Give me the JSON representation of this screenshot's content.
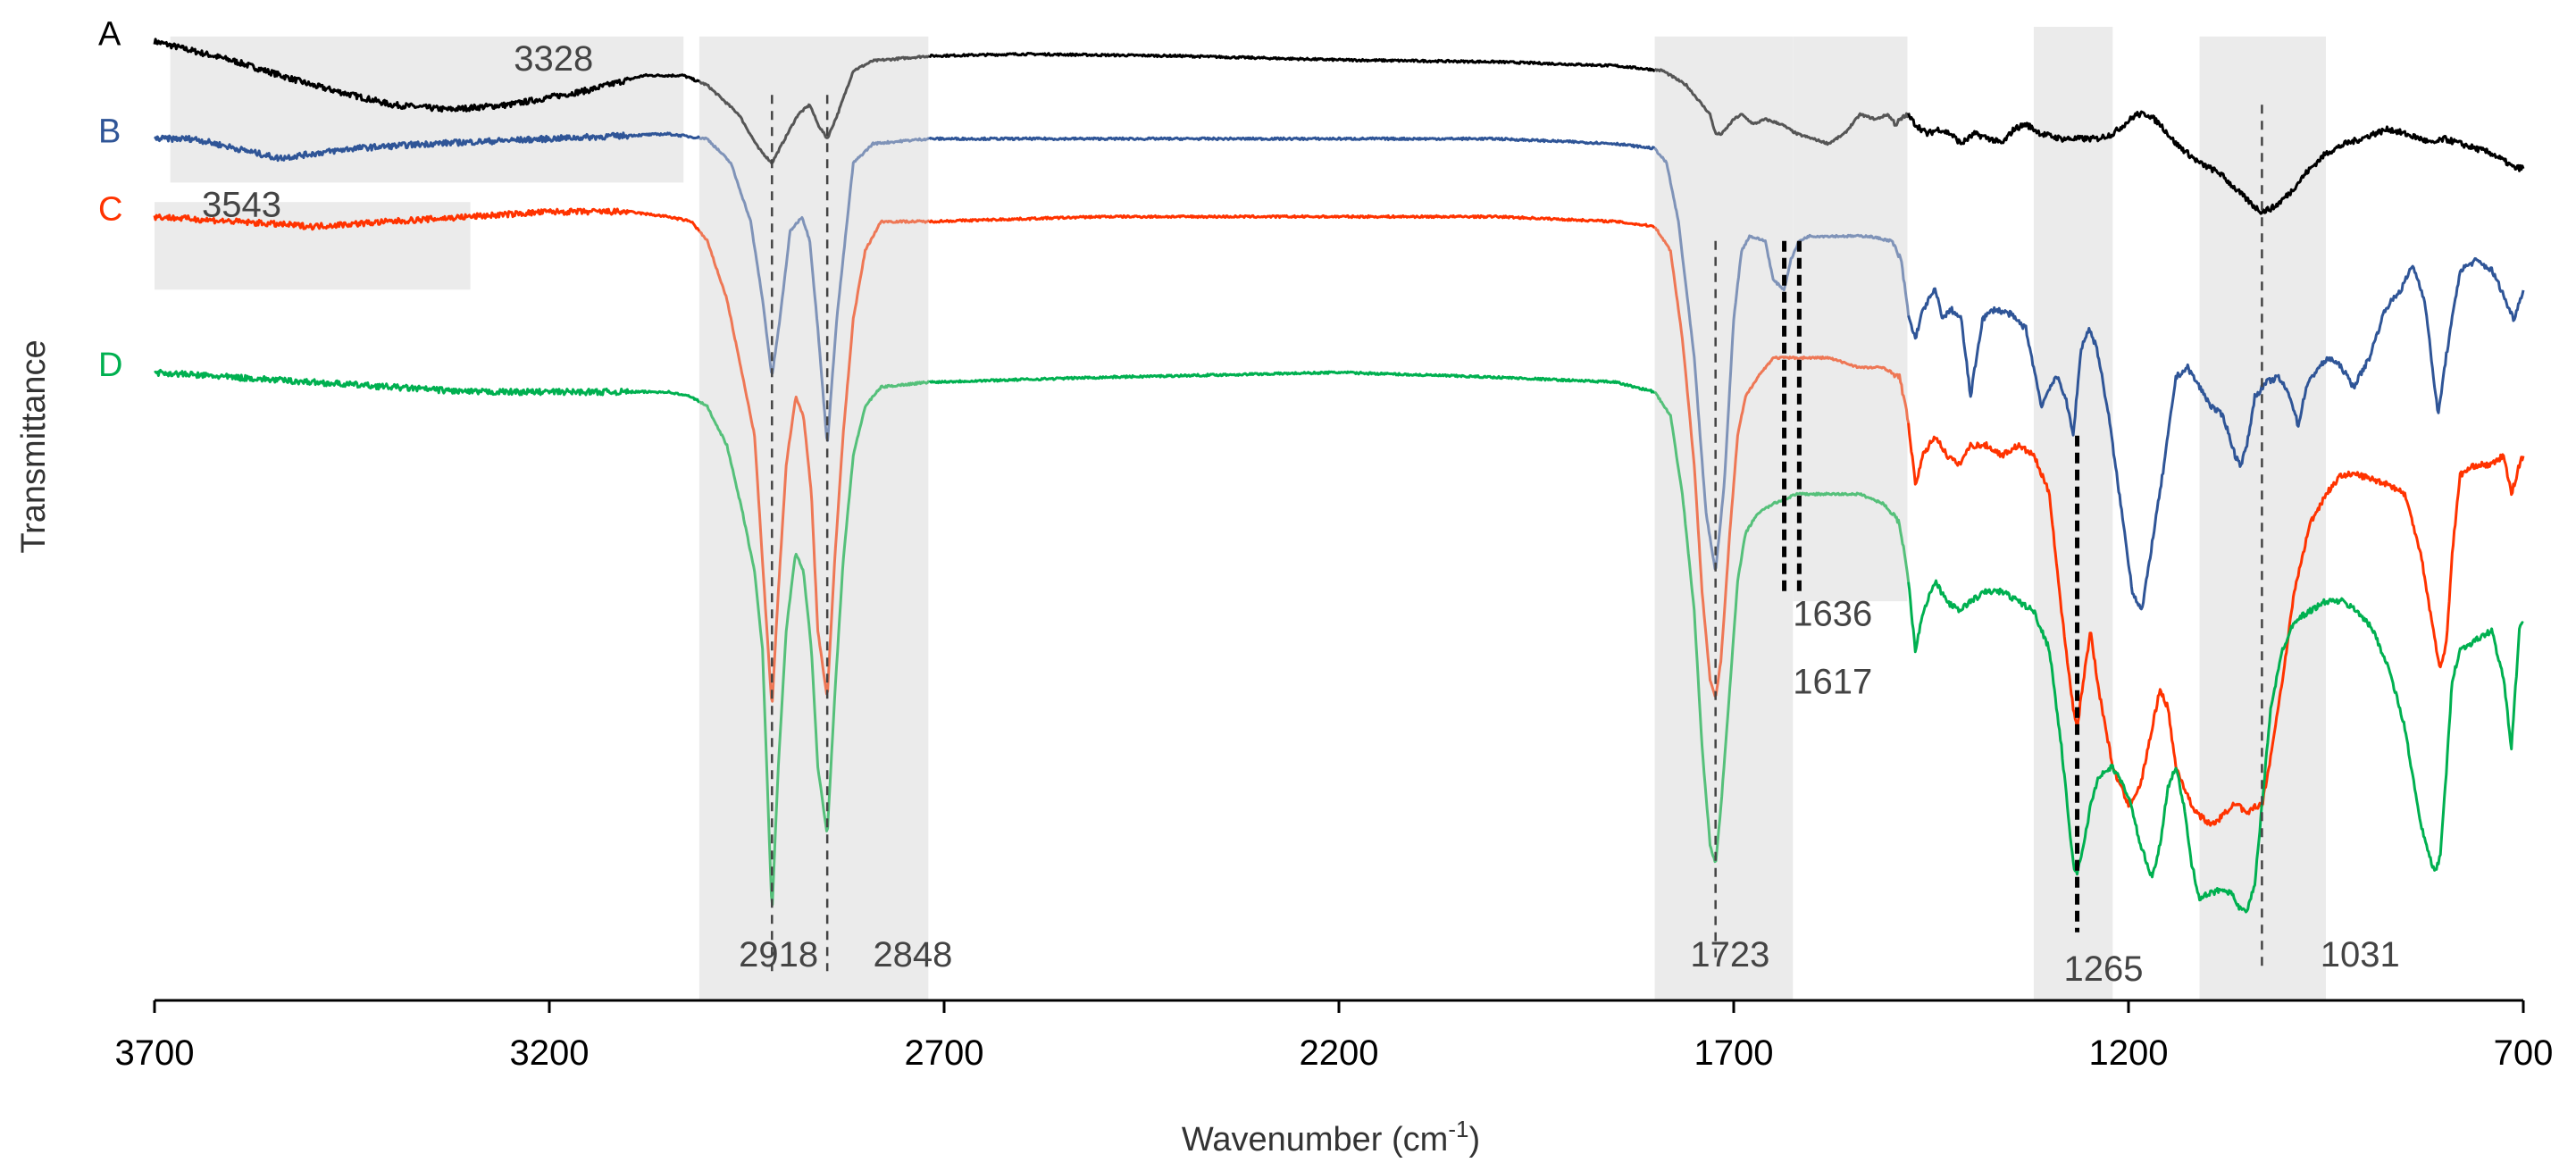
{
  "chart_data": {
    "type": "line",
    "title": "",
    "xlabel": "Wavenumber (cm",
    "xlabel_sup": "-1",
    "xlabel_close": ")",
    "ylabel": "Transmittance",
    "xlim": [
      3700,
      700
    ],
    "ylim": [
      0,
      100
    ],
    "x_reversed": true,
    "xticks": [
      3700,
      3200,
      2700,
      2200,
      1700,
      1200,
      700
    ],
    "xtick_labels": [
      "3700",
      "3200",
      "2700",
      "2200",
      "1700",
      "1200",
      "700"
    ],
    "grid": false,
    "legend": "inline-left",
    "shaded_regions": [
      {
        "from": 3680,
        "to": 3030,
        "y_top": 99,
        "y_bottom": 84
      },
      {
        "from": 3700,
        "to": 3300,
        "y_top": 82,
        "y_bottom": 73
      },
      {
        "from": 3010,
        "to": 2720,
        "y_top": 99,
        "y_bottom": 0
      },
      {
        "from": 1800,
        "to": 1625,
        "y_top": 99,
        "y_bottom": 0
      },
      {
        "from": 1625,
        "to": 1480,
        "y_top": 99,
        "y_bottom": 41
      },
      {
        "from": 1320,
        "to": 1220,
        "y_top": 100,
        "y_bottom": 0
      },
      {
        "from": 1110,
        "to": 950,
        "y_top": 99,
        "y_bottom": 0
      }
    ],
    "reference_lines": [
      {
        "x": 2918,
        "y_top": 93,
        "y_bottom": 3,
        "style": "dashed"
      },
      {
        "x": 2848,
        "y_top": 93,
        "y_bottom": 3,
        "style": "dashed"
      },
      {
        "x": 1723,
        "y_top": 78,
        "y_bottom": 4,
        "style": "dashed"
      },
      {
        "x": 1636,
        "y_top": 78,
        "y_bottom": 42,
        "style": "bold-dashed"
      },
      {
        "x": 1617,
        "y_top": 78,
        "y_bottom": 42,
        "style": "bold-dashed"
      },
      {
        "x": 1265,
        "y_top": 58,
        "y_bottom": 7,
        "style": "bold-dashed"
      },
      {
        "x": 1031,
        "y_top": 92,
        "y_bottom": 3,
        "style": "dashed"
      }
    ],
    "peak_labels": [
      {
        "text": "3328",
        "x": 3245,
        "y": 95.5
      },
      {
        "text": "3543",
        "x": 3640,
        "y": 80.5
      },
      {
        "text": "2918",
        "x": 2960,
        "y": 3.5
      },
      {
        "text": "2848",
        "x": 2790,
        "y": 3.5
      },
      {
        "text": "1723",
        "x": 1755,
        "y": 3.5
      },
      {
        "text": "1636",
        "x": 1625,
        "y": 38.5
      },
      {
        "text": "1617",
        "x": 1625,
        "y": 31.5
      },
      {
        "text": "1265",
        "x": 1282,
        "y": 2.0
      },
      {
        "text": "1031",
        "x": 957,
        "y": 3.5
      }
    ],
    "series": [
      {
        "name": "A",
        "color": "#000000",
        "highlight_color": "#555555",
        "highlight_ranges": [
          [
            3010,
            2720
          ],
          [
            1800,
            1480
          ]
        ],
        "x": [
          3700,
          3600,
          3500,
          3400,
          3328,
          3250,
          3150,
          3080,
          3030,
          3000,
          2960,
          2935,
          2918,
          2905,
          2885,
          2870,
          2860,
          2848,
          2835,
          2815,
          2790,
          2720,
          2600,
          2400,
          2200,
          2000,
          1850,
          1790,
          1760,
          1730,
          1723,
          1715,
          1700,
          1690,
          1675,
          1660,
          1640,
          1620,
          1600,
          1580,
          1560,
          1540,
          1520,
          1505,
          1495,
          1480,
          1470,
          1455,
          1440,
          1425,
          1412,
          1395,
          1375,
          1360,
          1345,
          1330,
          1310,
          1285,
          1265,
          1240,
          1220,
          1205,
          1190,
          1175,
          1160,
          1140,
          1110,
          1085,
          1060,
          1040,
          1031,
          1015,
          995,
          975,
          950,
          925,
          905,
          890,
          870,
          850,
          830,
          815,
          800,
          780,
          760,
          740,
          720,
          712,
          700
        ],
        "values": [
          98.5,
          96.5,
          94,
          92,
          91.5,
          92,
          93.5,
          95,
          95,
          94,
          91,
          87.5,
          86,
          88,
          91,
          92,
          90,
          88.5,
          91,
          95.5,
          96.5,
          97,
          97.2,
          97,
          96.6,
          96.4,
          96,
          95.5,
          94,
          91,
          89,
          89,
          90.5,
          91,
          90,
          90.5,
          90,
          89,
          88.5,
          88,
          89,
          91,
          90.5,
          91,
          90,
          91,
          90,
          89,
          89.5,
          89,
          88,
          89,
          88.5,
          88,
          89.5,
          90,
          89,
          88.5,
          88.5,
          88.5,
          89,
          90,
          91,
          91,
          90,
          88,
          86,
          85,
          83,
          81.5,
          81,
          81.5,
          83,
          85,
          87,
          88,
          88.5,
          89,
          89.5,
          89,
          88.5,
          88,
          88.5,
          88,
          87.5,
          87,
          86,
          85.5,
          85.5
        ]
      },
      {
        "name": "B",
        "color": "#2f5597",
        "highlight_color": "#7f93b8",
        "highlight_ranges": [
          [
            3010,
            2720
          ],
          [
            1800,
            1480
          ]
        ],
        "x": [
          3700,
          3650,
          3543,
          3450,
          3350,
          3200,
          3050,
          3000,
          2970,
          2945,
          2930,
          2918,
          2908,
          2895,
          2880,
          2870,
          2860,
          2848,
          2836,
          2815,
          2790,
          2720,
          2500,
          2200,
          2000,
          1850,
          1800,
          1785,
          1770,
          1750,
          1735,
          1723,
          1712,
          1700,
          1690,
          1680,
          1660,
          1650,
          1636,
          1628,
          1617,
          1605,
          1590,
          1560,
          1530,
          1500,
          1488,
          1478,
          1470,
          1460,
          1445,
          1435,
          1425,
          1412,
          1400,
          1385,
          1370,
          1350,
          1330,
          1310,
          1300,
          1290,
          1280,
          1270,
          1260,
          1250,
          1240,
          1225,
          1210,
          1195,
          1183,
          1170,
          1155,
          1140,
          1125,
          1110,
          1095,
          1080,
          1065,
          1058,
          1050,
          1040,
          1025,
          1010,
          995,
          985,
          975,
          960,
          945,
          930,
          915,
          895,
          875,
          855,
          840,
          825,
          815,
          808,
          798,
          780,
          760,
          740,
          728,
          718,
          712,
          700
        ],
        "values": [
          88.5,
          88.5,
          86.5,
          87.5,
          88,
          88.5,
          89,
          88.5,
          86,
          80,
          72,
          64,
          70,
          79,
          80.5,
          78,
          69,
          57,
          70,
          86,
          88,
          88.5,
          88.5,
          88.5,
          88.5,
          88,
          87.5,
          86,
          80,
          66,
          50,
          44,
          53,
          70,
          77,
          78.5,
          78,
          74,
          73,
          76,
          78,
          78.5,
          78.5,
          78.5,
          78.5,
          78,
          76,
          70,
          68,
          71,
          73,
          70,
          71,
          70,
          62,
          70,
          71,
          70.5,
          69,
          61,
          63,
          64,
          62,
          58,
          67,
          69,
          67,
          60,
          51,
          42,
          40,
          47,
          55,
          64,
          65,
          63,
          61,
          60,
          56,
          55,
          57,
          62,
          63.5,
          64,
          62,
          59,
          63,
          65,
          66,
          65,
          63,
          66,
          71,
          73,
          75.5,
          72,
          65,
          60,
          66,
          75,
          76,
          75,
          73,
          71,
          70,
          73
        ]
      },
      {
        "name": "C",
        "color": "#ff3300",
        "highlight_color": "#ee7755",
        "highlight_ranges": [
          [
            3010,
            2720
          ],
          [
            1800,
            1480
          ]
        ],
        "x": [
          3700,
          3600,
          3500,
          3400,
          3300,
          3200,
          3100,
          3050,
          3020,
          3000,
          2975,
          2955,
          2940,
          2930,
          2918,
          2910,
          2900,
          2888,
          2878,
          2868,
          2860,
          2848,
          2838,
          2828,
          2815,
          2800,
          2780,
          2720,
          2500,
          2200,
          2000,
          1850,
          1800,
          1780,
          1765,
          1750,
          1740,
          1730,
          1723,
          1716,
          1705,
          1695,
          1685,
          1670,
          1650,
          1620,
          1580,
          1540,
          1510,
          1490,
          1480,
          1470,
          1460,
          1445,
          1430,
          1415,
          1400,
          1380,
          1360,
          1340,
          1320,
          1300,
          1285,
          1270,
          1265,
          1257,
          1248,
          1238,
          1220,
          1200,
          1185,
          1170,
          1160,
          1150,
          1140,
          1130,
          1120,
          1110,
          1095,
          1080,
          1070,
          1060,
          1050,
          1040,
          1031,
          1020,
          1005,
          990,
          970,
          950,
          930,
          910,
          890,
          870,
          850,
          830,
          812,
          805,
          797,
          790,
          780,
          760,
          740,
          725,
          715,
          705,
          700
        ],
        "values": [
          80.5,
          80,
          79.5,
          80,
          80.5,
          81,
          81,
          80.5,
          80,
          78,
          72,
          64,
          58,
          45,
          30,
          42,
          55,
          62,
          60,
          52,
          38,
          31,
          46,
          58,
          70,
          77,
          80,
          80,
          80.5,
          80.5,
          80.5,
          80,
          79.5,
          77,
          68,
          55,
          42,
          33,
          31,
          35,
          48,
          58,
          62,
          64,
          66,
          66,
          66,
          65,
          65,
          64,
          60,
          53,
          56,
          58,
          56,
          55,
          57,
          57,
          56,
          57,
          56,
          52,
          40,
          30,
          28,
          33,
          38,
          32,
          24,
          20,
          22,
          28,
          32,
          30,
          24,
          22,
          20,
          19,
          18,
          19,
          20,
          20,
          19,
          20,
          20,
          25,
          33,
          42,
          49,
          52,
          54,
          54,
          53.5,
          53,
          52,
          46,
          37,
          34,
          37,
          46,
          54,
          55,
          55,
          56,
          52,
          55,
          56
        ]
      },
      {
        "name": "D",
        "color": "#00b050",
        "highlight_color": "#55c07a",
        "highlight_ranges": [
          [
            3010,
            2720
          ],
          [
            1800,
            1480
          ]
        ],
        "x": [
          3700,
          3600,
          3500,
          3400,
          3300,
          3200,
          3100,
          3050,
          3020,
          3000,
          2975,
          2955,
          2940,
          2930,
          2918,
          2910,
          2900,
          2888,
          2878,
          2868,
          2860,
          2848,
          2838,
          2828,
          2815,
          2800,
          2780,
          2720,
          2500,
          2200,
          2000,
          1850,
          1800,
          1780,
          1765,
          1750,
          1740,
          1730,
          1723,
          1716,
          1705,
          1695,
          1685,
          1670,
          1650,
          1620,
          1580,
          1540,
          1510,
          1490,
          1480,
          1470,
          1460,
          1445,
          1430,
          1415,
          1400,
          1380,
          1360,
          1340,
          1320,
          1300,
          1285,
          1270,
          1265,
          1257,
          1248,
          1238,
          1220,
          1200,
          1185,
          1170,
          1160,
          1150,
          1140,
          1130,
          1120,
          1110,
          1095,
          1080,
          1070,
          1060,
          1050,
          1040,
          1031,
          1020,
          1005,
          990,
          970,
          950,
          930,
          910,
          890,
          870,
          850,
          830,
          812,
          805,
          797,
          790,
          780,
          760,
          740,
          725,
          715,
          705,
          700
        ],
        "values": [
          64.5,
          64,
          63.5,
          63,
          62.5,
          62.5,
          62.5,
          62.5,
          62,
          61,
          57,
          50,
          44,
          36,
          9,
          24,
          38,
          46,
          44,
          36,
          24,
          17,
          32,
          45,
          56,
          61,
          63,
          63.5,
          64,
          64.5,
          64,
          63.5,
          62.5,
          60,
          52,
          40,
          26,
          16,
          14,
          20,
          32,
          43,
          48,
          50,
          51,
          52,
          52,
          52,
          51,
          49,
          44,
          36,
          40,
          43,
          41,
          40,
          41,
          42,
          42,
          41,
          40,
          36,
          26,
          14,
          13,
          16,
          20,
          23,
          24,
          21,
          16,
          12.5,
          16,
          22,
          24,
          20,
          14,
          10.5,
          11,
          11.5,
          11,
          9.5,
          9,
          12,
          20,
          30,
          36,
          39,
          40,
          41,
          41,
          40,
          38,
          34,
          28,
          18,
          13,
          15,
          24,
          33,
          36,
          37,
          38,
          33,
          26,
          38,
          39
        ]
      }
    ]
  }
}
